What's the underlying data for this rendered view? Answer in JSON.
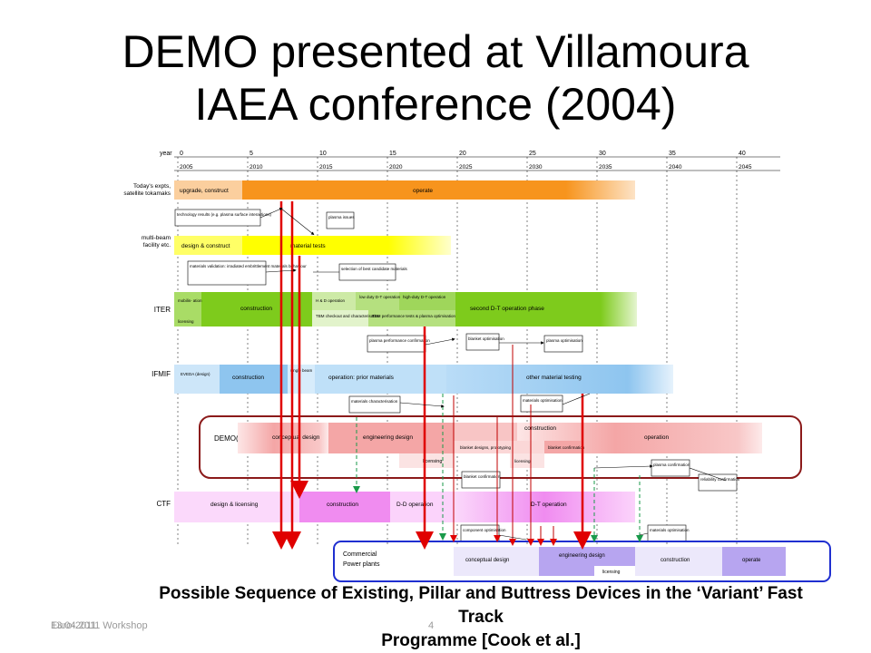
{
  "title_lines": [
    "DEMO presented at Villamoura",
    "IAEA conference (2004)"
  ],
  "caption_lines": [
    "Possible Sequence of Existing, Pillar and Buttress Devices in the ‘Variant’ Fast Track",
    "Programme [Cook et al.]"
  ],
  "footer": {
    "left_a": "Euro-2011",
    "left_b": "13.04.2011 Workshop",
    "page": "4"
  },
  "timeline": {
    "year_label": "year",
    "years": [
      "0",
      "5",
      "10",
      "15",
      "20",
      "25",
      "30",
      "35",
      "40"
    ],
    "calendar": [
      "2005",
      "2010",
      "2015",
      "2020",
      "2025",
      "2030",
      "2035",
      "2040",
      "2045"
    ]
  },
  "rows": {
    "tokamaks": {
      "label": "Today's expts, satellite tokamaks",
      "bar1": "upgrade, construct",
      "bar2": "operate"
    },
    "multibeam": {
      "label": "multi-beam facility etc.",
      "bar1": "design & construct",
      "bar2": "material tests"
    },
    "iter": {
      "label": "ITER",
      "licensing": "licensing",
      "mobilisation": "mobilis- ation",
      "construction": "construction",
      "hh_op": "H & D operation",
      "lowdt": "low duty D-T operation",
      "highdt": "high-duty D-T operation",
      "tbm": "TBM checkout and characterisation",
      "tbm2": "TBM performance tests & plasma optimisation",
      "second": "second D-T operation phase"
    },
    "ifmif": {
      "label": "IFMIF",
      "eveda": "EVEDA (design)",
      "construction": "construction",
      "single": "single beam",
      "operation": "operation: prior materials",
      "other": "other material testing"
    },
    "demo": {
      "label": "DEMO(s)",
      "conceptual": "conceptual design",
      "engineering": "engineering design",
      "construction": "construction",
      "operation": "operation",
      "licensing": "licensing",
      "blanket_design": "blanket designs, prototyping",
      "blanket_conf": "blanket confirmation",
      "licensing2": "licensing"
    },
    "ctf": {
      "label": "CTF",
      "design": "design & licensing",
      "construction": "construction",
      "dd": "D-D operation",
      "dt": "D-T operation"
    },
    "commercial": {
      "label": "Commercial Power plants",
      "conceptual": "conceptual design",
      "engineering": "engineering design",
      "construction": "construction",
      "operate": "operate",
      "licensing": "licensing"
    }
  },
  "notes": {
    "n1": "technology results (e.g. plasma surface interactions)",
    "n2": "plasma issues",
    "n3": "materials validation: irradiated embrittlement materials behaviour",
    "n4": "selection of best candidate materials",
    "n5": "plasma performance confirmation",
    "n6": "blanket optimisation",
    "n7": "plasma optimisation",
    "n8": "materials characterisation",
    "n9": "materials optimisation",
    "n10": "blanket confirmation",
    "n11": "plasma confirmation",
    "n12": "reliability confirmation",
    "n13": "component optimisation",
    "n14": "materials optimisation"
  },
  "colors": {
    "orange": "#f7941d",
    "yellow": "#ffff00",
    "green": "#7ecb1c",
    "blue": "#8ec5ef",
    "pink": "#f4a6a6",
    "magenta": "#f08cf0",
    "purple": "#b7a5f0",
    "arrow_red": "#e00000",
    "arrow_green": "#1a9a4a",
    "demo_box": "#8b1a1a",
    "commercial_box": "#1f2fd0"
  }
}
